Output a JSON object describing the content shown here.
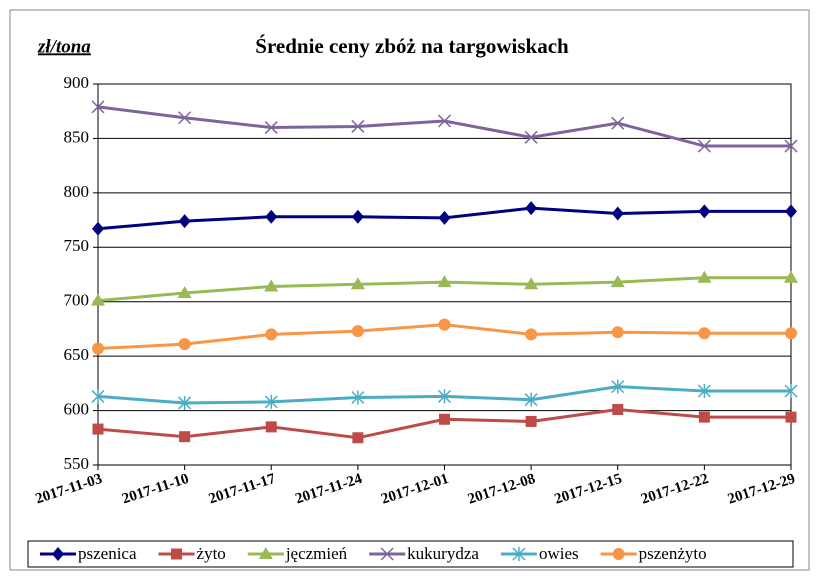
{
  "chart_data": {
    "type": "line",
    "title": "Średnie ceny zbóż na targowiskach",
    "y_label": "zł/tona",
    "categories": [
      "2017-11-03",
      "2017-11-10",
      "2017-11-17",
      "2017-11-24",
      "2017-12-01",
      "2017-12-08",
      "2017-12-15",
      "2017-12-22",
      "2017-12-29"
    ],
    "ylim": [
      550,
      900
    ],
    "yticks": [
      550,
      600,
      650,
      700,
      750,
      800,
      850,
      900
    ],
    "grid": true,
    "legend": "bottom",
    "series": [
      {
        "name": "pszenica",
        "color": "#000080",
        "marker": "diamond",
        "values": [
          767,
          774,
          778,
          778,
          777,
          786,
          781,
          783,
          783
        ]
      },
      {
        "name": "żyto",
        "color": "#be4b48",
        "marker": "square",
        "values": [
          583,
          576,
          585,
          575,
          592,
          590,
          601,
          594,
          594
        ]
      },
      {
        "name": "jęczmień",
        "color": "#98b954",
        "marker": "triangle",
        "values": [
          701,
          708,
          714,
          716,
          718,
          716,
          718,
          722,
          722
        ]
      },
      {
        "name": "kukurydza",
        "color": "#7e649e",
        "marker": "x",
        "values": [
          879,
          869,
          860,
          861,
          866,
          851,
          864,
          843,
          843
        ]
      },
      {
        "name": "owies",
        "color": "#4bacc6",
        "marker": "star",
        "values": [
          613,
          607,
          608,
          612,
          613,
          610,
          622,
          618,
          618
        ]
      },
      {
        "name": "pszenżyto",
        "color": "#f79646",
        "marker": "circle",
        "values": [
          657,
          661,
          670,
          673,
          679,
          670,
          672,
          671,
          671
        ]
      }
    ]
  }
}
